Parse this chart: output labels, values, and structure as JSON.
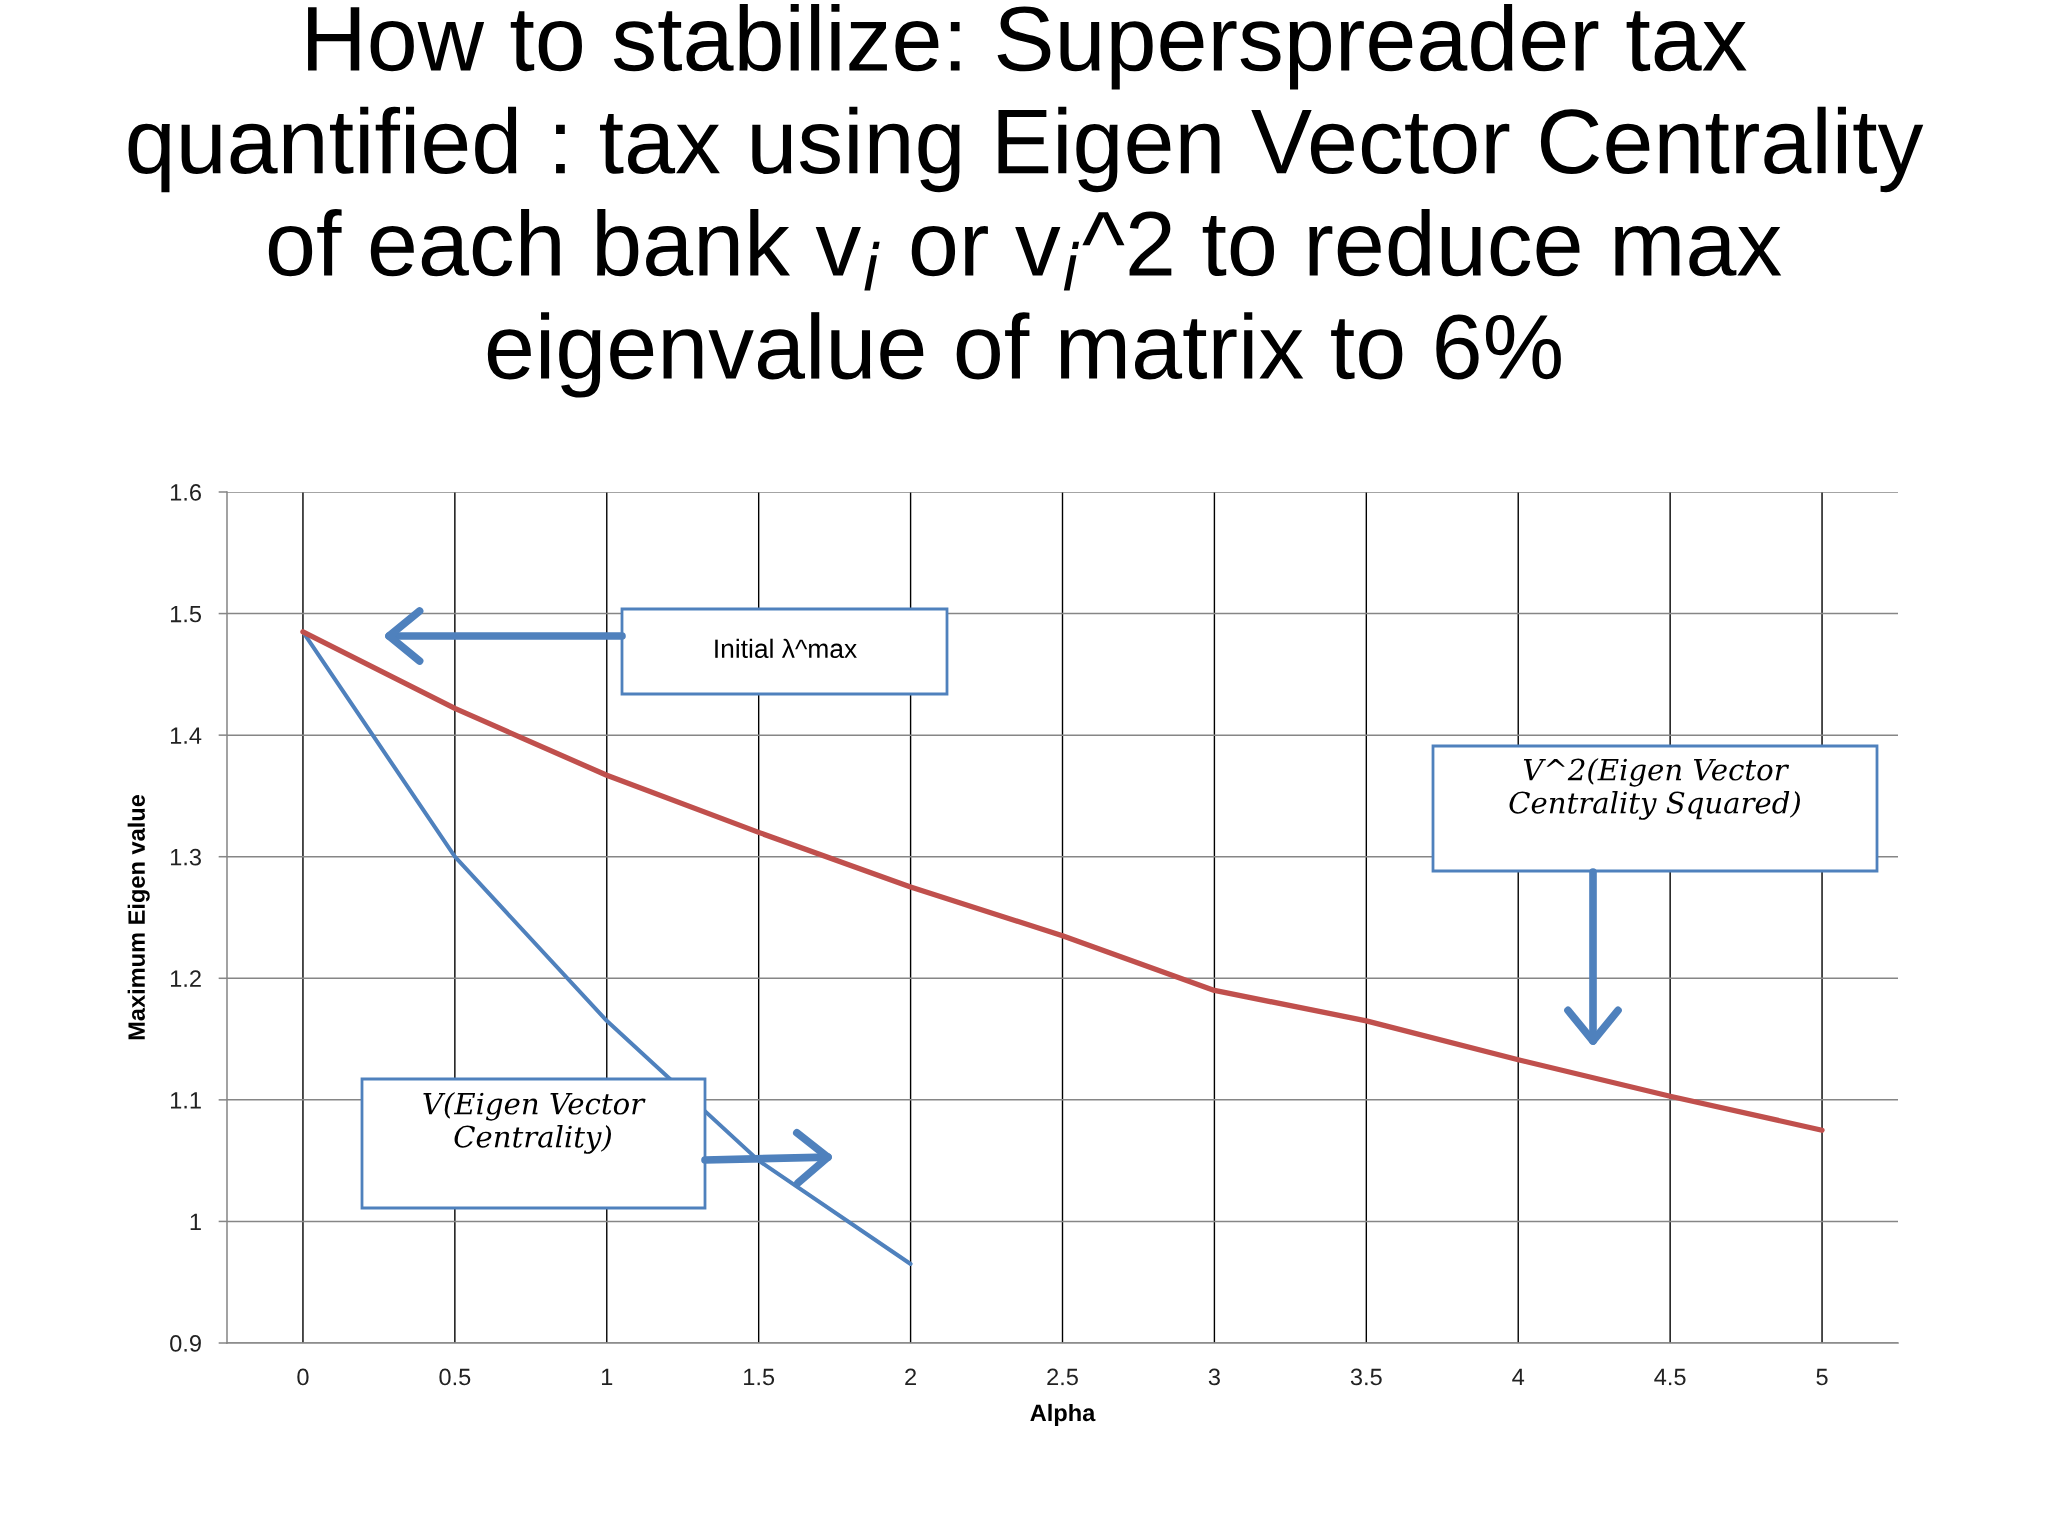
{
  "chart_data": {
    "type": "line",
    "title": "How to stabilize: Superspreader tax quantified : tax using Eigen Vector Centrality of each bank v$_{i}$ or v$_{i}$^2 to reduce max eigenvalue of matrix to 6%",
    "xlabel": "Alpha",
    "ylabel": "Maximum Eigen value",
    "categories": [
      "0",
      "0.5",
      "1",
      "1.5",
      "2",
      "2.5",
      "3",
      "3.5",
      "4",
      "4.5",
      "5"
    ],
    "series": [
      {
        "color": "#4f81bd",
        "values": [
          1.485,
          1.3,
          1.165,
          1.05,
          0.965,
          null,
          null,
          null,
          null,
          null,
          null
        ]
      },
      {
        "color": "#c0504d",
        "values": [
          1.485,
          1.422,
          1.367,
          1.32,
          1.275,
          1.235,
          1.19,
          1.165,
          1.133,
          1.103,
          1.075
        ]
      }
    ],
    "ylim": [
      0.9,
      1.6
    ],
    "yticks": [
      0.9,
      1,
      1.1,
      1.2,
      1.3,
      1.4,
      1.5,
      1.6
    ],
    "grid": true,
    "annotations": [
      "Initial λ^max",
      "V(Eigen Vector Centrality)",
      "V^2(Eigen Vector Centrality Squared)"
    ]
  }
}
